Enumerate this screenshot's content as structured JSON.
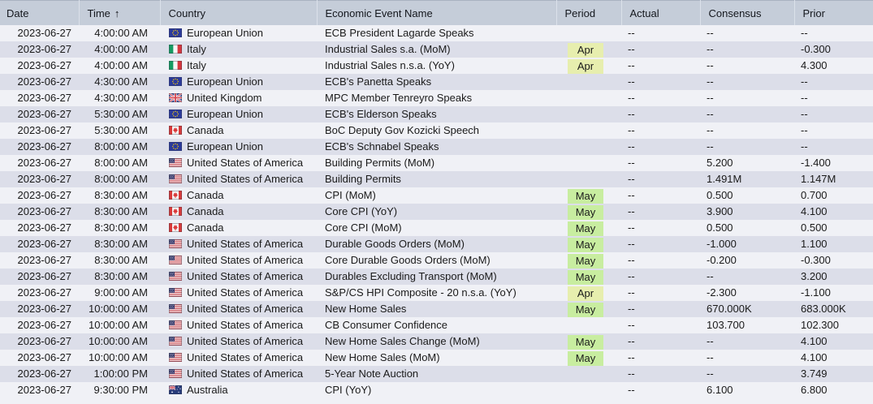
{
  "table": {
    "columns": [
      {
        "key": "date",
        "label": "Date"
      },
      {
        "key": "time",
        "label": "Time",
        "sort": "ascending",
        "sort_icon": "↑"
      },
      {
        "key": "country",
        "label": "Country"
      },
      {
        "key": "event",
        "label": "Economic Event Name"
      },
      {
        "key": "period",
        "label": "Period"
      },
      {
        "key": "actual",
        "label": "Actual"
      },
      {
        "key": "consensus",
        "label": "Consensus"
      },
      {
        "key": "prior",
        "label": "Prior"
      }
    ],
    "period_highlight_colors": {
      "Apr": "#e7eeae",
      "May": "#c8eda0"
    },
    "empty_value": "--",
    "rows": [
      {
        "date": "2023-06-27",
        "time": "4:00:00 AM",
        "country": "European Union",
        "event": "ECB President Lagarde Speaks",
        "period": "",
        "actual": "--",
        "consensus": "--",
        "prior": "--"
      },
      {
        "date": "2023-06-27",
        "time": "4:00:00 AM",
        "country": "Italy",
        "event": "Industrial Sales s.a. (MoM)",
        "period": "Apr",
        "actual": "--",
        "consensus": "--",
        "prior": "-0.300"
      },
      {
        "date": "2023-06-27",
        "time": "4:00:00 AM",
        "country": "Italy",
        "event": "Industrial Sales n.s.a. (YoY)",
        "period": "Apr",
        "actual": "--",
        "consensus": "--",
        "prior": "4.300"
      },
      {
        "date": "2023-06-27",
        "time": "4:30:00 AM",
        "country": "European Union",
        "event": "ECB's Panetta Speaks",
        "period": "",
        "actual": "--",
        "consensus": "--",
        "prior": "--"
      },
      {
        "date": "2023-06-27",
        "time": "4:30:00 AM",
        "country": "United Kingdom",
        "event": "MPC Member Tenreyro Speaks",
        "period": "",
        "actual": "--",
        "consensus": "--",
        "prior": "--"
      },
      {
        "date": "2023-06-27",
        "time": "5:30:00 AM",
        "country": "European Union",
        "event": "ECB's Elderson Speaks",
        "period": "",
        "actual": "--",
        "consensus": "--",
        "prior": "--"
      },
      {
        "date": "2023-06-27",
        "time": "5:30:00 AM",
        "country": "Canada",
        "event": "BoC Deputy Gov Kozicki Speech",
        "period": "",
        "actual": "--",
        "consensus": "--",
        "prior": "--"
      },
      {
        "date": "2023-06-27",
        "time": "8:00:00 AM",
        "country": "European Union",
        "event": "ECB's Schnabel Speaks",
        "period": "",
        "actual": "--",
        "consensus": "--",
        "prior": "--"
      },
      {
        "date": "2023-06-27",
        "time": "8:00:00 AM",
        "country": "United States of America",
        "event": "Building Permits (MoM)",
        "period": "",
        "actual": "--",
        "consensus": "5.200",
        "prior": "-1.400"
      },
      {
        "date": "2023-06-27",
        "time": "8:00:00 AM",
        "country": "United States of America",
        "event": "Building Permits",
        "period": "",
        "actual": "--",
        "consensus": "1.491M",
        "prior": "1.147M"
      },
      {
        "date": "2023-06-27",
        "time": "8:30:00 AM",
        "country": "Canada",
        "event": "CPI (MoM)",
        "period": "May",
        "actual": "--",
        "consensus": "0.500",
        "prior": "0.700"
      },
      {
        "date": "2023-06-27",
        "time": "8:30:00 AM",
        "country": "Canada",
        "event": "Core CPI (YoY)",
        "period": "May",
        "actual": "--",
        "consensus": "3.900",
        "prior": "4.100"
      },
      {
        "date": "2023-06-27",
        "time": "8:30:00 AM",
        "country": "Canada",
        "event": "Core CPI (MoM)",
        "period": "May",
        "actual": "--",
        "consensus": "0.500",
        "prior": "0.500"
      },
      {
        "date": "2023-06-27",
        "time": "8:30:00 AM",
        "country": "United States of America",
        "event": "Durable Goods Orders (MoM)",
        "period": "May",
        "actual": "--",
        "consensus": "-1.000",
        "prior": "1.100"
      },
      {
        "date": "2023-06-27",
        "time": "8:30:00 AM",
        "country": "United States of America",
        "event": "Core Durable Goods Orders (MoM)",
        "period": "May",
        "actual": "--",
        "consensus": "-0.200",
        "prior": "-0.300"
      },
      {
        "date": "2023-06-27",
        "time": "8:30:00 AM",
        "country": "United States of America",
        "event": "Durables Excluding Transport (MoM)",
        "period": "May",
        "actual": "--",
        "consensus": "--",
        "prior": "3.200"
      },
      {
        "date": "2023-06-27",
        "time": "9:00:00 AM",
        "country": "United States of America",
        "event": "S&P/CS HPI Composite - 20 n.s.a. (YoY)",
        "period": "Apr",
        "actual": "--",
        "consensus": "-2.300",
        "prior": "-1.100"
      },
      {
        "date": "2023-06-27",
        "time": "10:00:00 AM",
        "country": "United States of America",
        "event": "New Home Sales",
        "period": "May",
        "actual": "--",
        "consensus": "670.000K",
        "prior": "683.000K"
      },
      {
        "date": "2023-06-27",
        "time": "10:00:00 AM",
        "country": "United States of America",
        "event": "CB Consumer Confidence",
        "period": "",
        "actual": "--",
        "consensus": "103.700",
        "prior": "102.300"
      },
      {
        "date": "2023-06-27",
        "time": "10:00:00 AM",
        "country": "United States of America",
        "event": "New Home Sales Change (MoM)",
        "period": "May",
        "actual": "--",
        "consensus": "--",
        "prior": "4.100"
      },
      {
        "date": "2023-06-27",
        "time": "10:00:00 AM",
        "country": "United States of America",
        "event": "New Home Sales (MoM)",
        "period": "May",
        "actual": "--",
        "consensus": "--",
        "prior": "4.100"
      },
      {
        "date": "2023-06-27",
        "time": "1:00:00 PM",
        "country": "United States of America",
        "event": "5-Year Note Auction",
        "period": "",
        "actual": "--",
        "consensus": "--",
        "prior": "3.749"
      },
      {
        "date": "2023-06-27",
        "time": "9:30:00 PM",
        "country": "Australia",
        "event": "CPI (YoY)",
        "period": "",
        "actual": "--",
        "consensus": "6.100",
        "prior": "6.800"
      }
    ]
  }
}
